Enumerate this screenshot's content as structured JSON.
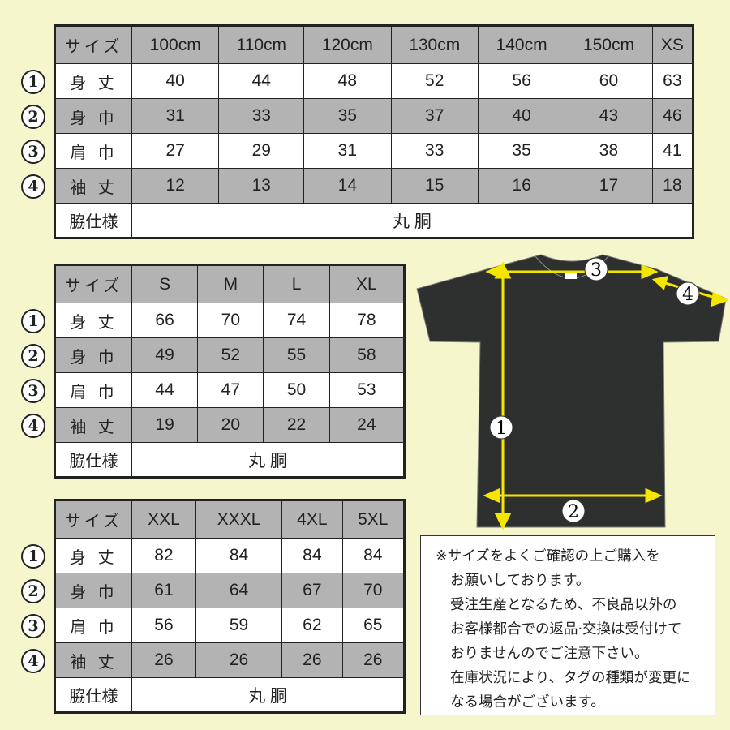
{
  "row_numbers": [
    "①",
    "②",
    "③",
    "④"
  ],
  "row_labels": [
    "身 丈",
    "身 巾",
    "肩 巾",
    "袖 丈"
  ],
  "header_label": "サイズ",
  "side_label": "脇仕様",
  "side_value": "丸 胴",
  "tables": [
    {
      "sizes": [
        "100cm",
        "110cm",
        "120cm",
        "130cm",
        "140cm",
        "150cm",
        "XS"
      ],
      "rows": [
        [
          "40",
          "44",
          "48",
          "52",
          "56",
          "60",
          "63"
        ],
        [
          "31",
          "33",
          "35",
          "37",
          "40",
          "43",
          "46"
        ],
        [
          "27",
          "29",
          "31",
          "33",
          "35",
          "38",
          "41"
        ],
        [
          "12",
          "13",
          "14",
          "15",
          "16",
          "17",
          "18"
        ]
      ]
    },
    {
      "sizes": [
        "S",
        "M",
        "L",
        "XL"
      ],
      "rows": [
        [
          "66",
          "70",
          "74",
          "78"
        ],
        [
          "49",
          "52",
          "55",
          "58"
        ],
        [
          "44",
          "47",
          "50",
          "53"
        ],
        [
          "19",
          "20",
          "22",
          "24"
        ]
      ]
    },
    {
      "sizes": [
        "XXL",
        "XXXL",
        "4XL",
        "5XL"
      ],
      "rows": [
        [
          "82",
          "84",
          "84",
          "84"
        ],
        [
          "61",
          "64",
          "67",
          "70"
        ],
        [
          "56",
          "59",
          "62",
          "65"
        ],
        [
          "26",
          "26",
          "26",
          "26"
        ]
      ]
    }
  ],
  "diagram_labels": [
    "1",
    "2",
    "3",
    "4"
  ],
  "note": {
    "lines": [
      "※サイズをよくご確認の上ご購入を",
      "お願いしております。",
      "受注生産となるため、不良品以外の",
      "お客様都合での返品·交換は受付けて",
      "おりませんのでご注意下さい。",
      "在庫状況により、タグの種類が変更に",
      "なる場合がございます。"
    ]
  },
  "colors": {
    "background": "#f6f6cd",
    "gray_cell": "#b3b3b3",
    "shirt": "#2e302f",
    "arrow": "#f5e600"
  }
}
